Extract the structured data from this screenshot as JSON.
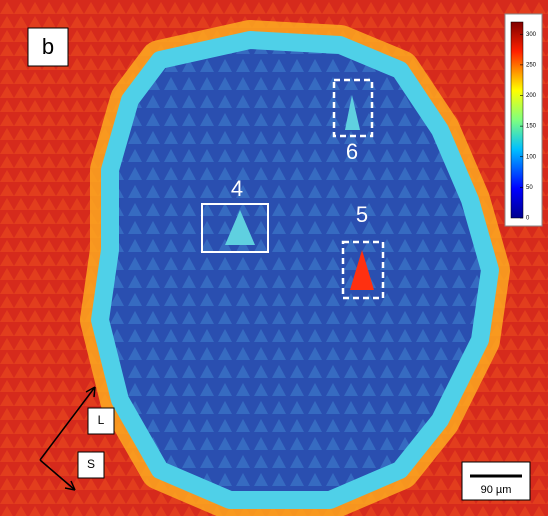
{
  "panel_label": "b",
  "colorbar": {
    "lim": [
      0,
      320
    ],
    "ticks": [
      0,
      50,
      100,
      150,
      200,
      250,
      300
    ]
  },
  "regions": [
    {
      "label": "4"
    },
    {
      "label": "5"
    },
    {
      "label": "6"
    }
  ],
  "directions": {
    "l": "L",
    "s": "S"
  },
  "scale_bar": "90 µm"
}
